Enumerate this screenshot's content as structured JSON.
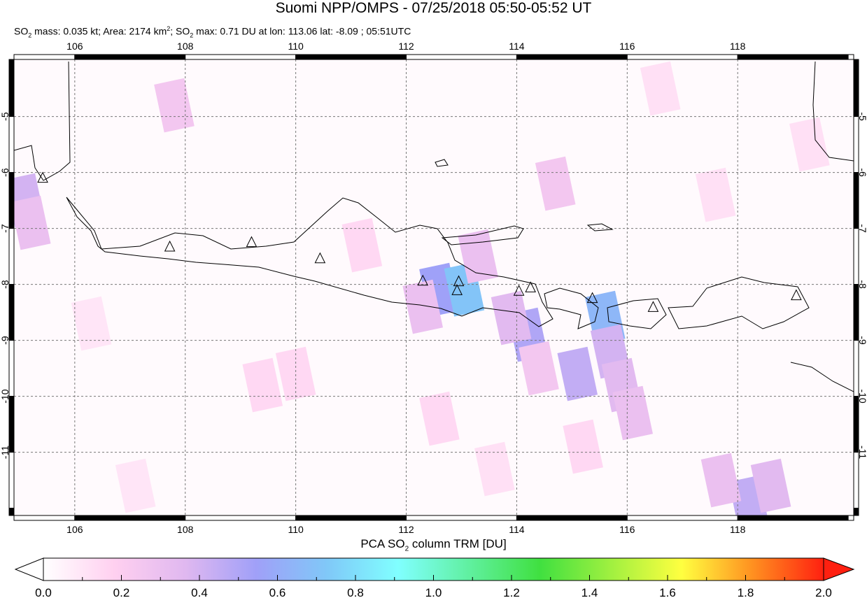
{
  "header": {
    "title": "Suomi NPP/OMPS - 07/25/2018 05:50-05:52 UT",
    "subtitle_parts": [
      "SO",
      "2",
      " mass: 0.035 kt; Area: 2174 km",
      "2",
      "; SO",
      "2",
      " max: 0.71 DU at lon: 113.06 lat: -8.09 ; 05:51UTC"
    ]
  },
  "map": {
    "lon_range": [
      104.9,
      120.1
    ],
    "lat_range": [
      -12.13,
      -3.98
    ],
    "lon_ticks": [
      "106",
      "108",
      "110",
      "112",
      "114",
      "116",
      "118"
    ],
    "lon_tick_values": [
      106,
      108,
      110,
      112,
      114,
      116,
      118
    ],
    "lat_ticks": [
      "-5",
      "-6",
      "-7",
      "-8",
      "-9",
      "-10",
      "-11"
    ],
    "lat_tick_values": [
      -5,
      -6,
      -7,
      -8,
      -9,
      -10,
      -11
    ],
    "grid": "dashed",
    "volcanoes": [
      [
        105.42,
        -6.1
      ],
      [
        107.72,
        -7.33
      ],
      [
        109.2,
        -7.25
      ],
      [
        110.44,
        -7.54
      ],
      [
        112.3,
        -7.94
      ],
      [
        112.95,
        -7.95
      ],
      [
        112.92,
        -8.11
      ],
      [
        114.04,
        -8.12
      ],
      [
        114.25,
        -8.06
      ],
      [
        115.37,
        -8.25
      ],
      [
        116.47,
        -8.41
      ],
      [
        119.06,
        -8.2
      ]
    ],
    "so2_pixels": [
      [
        112.6,
        -8.1,
        0.55
      ],
      [
        113.05,
        -8.09,
        0.71
      ],
      [
        112.3,
        -8.4,
        0.3
      ],
      [
        114.2,
        -8.9,
        0.5
      ],
      [
        113.9,
        -8.6,
        0.35
      ],
      [
        115.6,
        -8.6,
        0.65
      ],
      [
        115.7,
        -9.2,
        0.4
      ],
      [
        115.9,
        -9.8,
        0.35
      ],
      [
        116.1,
        -10.3,
        0.3
      ],
      [
        115.1,
        -9.6,
        0.45
      ],
      [
        105.1,
        -6.5,
        0.4
      ],
      [
        105.2,
        -6.9,
        0.3
      ],
      [
        118.2,
        -11.9,
        0.45
      ],
      [
        118.6,
        -11.6,
        0.35
      ],
      [
        117.7,
        -11.5,
        0.3
      ],
      [
        114.7,
        -6.2,
        0.25
      ],
      [
        113.3,
        -7.5,
        0.3
      ],
      [
        107.8,
        -4.8,
        0.25
      ],
      [
        114.4,
        -9.5,
        0.25
      ],
      [
        110.0,
        -9.6,
        0.15
      ],
      [
        109.4,
        -9.8,
        0.15
      ],
      [
        112.6,
        -10.4,
        0.15
      ],
      [
        116.6,
        -4.5,
        0.12
      ],
      [
        107.1,
        -11.6,
        0.1
      ],
      [
        119.3,
        -5.5,
        0.12
      ],
      [
        111.2,
        -7.3,
        0.15
      ],
      [
        106.3,
        -8.7,
        0.1
      ],
      [
        117.6,
        -6.4,
        0.12
      ],
      [
        113.6,
        -11.3,
        0.12
      ],
      [
        115.2,
        -10.9,
        0.15
      ]
    ]
  },
  "colorbar": {
    "label_parts": [
      "PCA SO",
      "2",
      " column TRM [DU]"
    ],
    "ticks": [
      "0.0",
      "0.2",
      "0.4",
      "0.6",
      "0.8",
      "1.0",
      "1.2",
      "1.4",
      "1.6",
      "1.8",
      "2.0"
    ],
    "range": [
      0,
      2.0
    ],
    "colors": [
      "#ffffff",
      "#ffd0f0",
      "#e0b8f0",
      "#a0a0f8",
      "#80c8f8",
      "#80ffff",
      "#60f0a0",
      "#40e040",
      "#a0f040",
      "#ffff40",
      "#ff9020",
      "#ff2010"
    ]
  }
}
